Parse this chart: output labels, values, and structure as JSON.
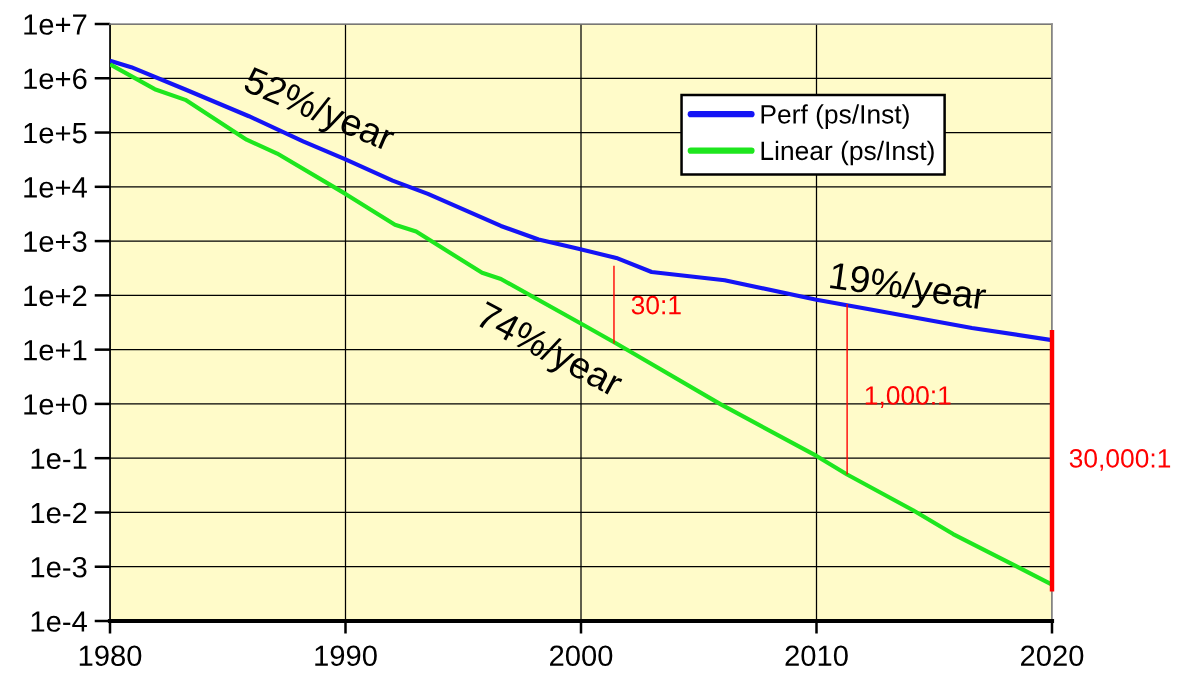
{
  "chart_data": {
    "type": "line",
    "log": "y",
    "xlim": [
      1980,
      2020
    ],
    "xticks": [
      1980,
      1990,
      2000,
      2010,
      2020
    ],
    "ylim": [
      0.0001,
      10000000
    ],
    "yticks": [
      {
        "value": 10000000,
        "label": "1e+7"
      },
      {
        "value": 1000000,
        "label": "1e+6"
      },
      {
        "value": 100000,
        "label": "1e+5"
      },
      {
        "value": 10000,
        "label": "1e+4"
      },
      {
        "value": 1000,
        "label": "1e+3"
      },
      {
        "value": 100,
        "label": "1e+2"
      },
      {
        "value": 10,
        "label": "1e+1"
      },
      {
        "value": 1,
        "label": "1e+0"
      },
      {
        "value": 0.1,
        "label": "1e-1"
      },
      {
        "value": 0.01,
        "label": "1e-2"
      },
      {
        "value": 0.001,
        "label": "1e-3"
      },
      {
        "value": 0.0001,
        "label": "1e-4"
      }
    ],
    "grid": true,
    "legend": "top right",
    "line_style": "solid",
    "series": [
      {
        "name": "Perf (ps/Inst)",
        "color": "#1414f5",
        "x": [
          1980,
          1980.9,
          1983.2,
          1985.9,
          1988.2,
          1990,
          1992,
          1993.5,
          1996.6,
          1998.2,
          1999.8,
          2001.5,
          2003,
          2006.1,
          2010,
          2012.3,
          2016.6,
          2020
        ],
        "values": [
          2100000,
          1600000,
          620000,
          200000,
          69000,
          32000,
          13000,
          7400,
          1900,
          1070,
          740,
          490,
          270,
          190,
          83,
          55,
          25,
          15
        ]
      },
      {
        "name": "Linear (ps/Inst)",
        "color": "#1ee61e",
        "x": [
          1980,
          1981.9,
          1983.2,
          1985.8,
          1987.1,
          1990,
          1992.1,
          1993,
          1995.8,
          1996.6,
          2000.2,
          2001.5,
          2005.9,
          2010,
          2011.3,
          2014.1,
          2015.8,
          2020
        ],
        "values": [
          1800000,
          630000,
          400000,
          74000,
          41000,
          7400,
          2000,
          1500,
          260,
          200,
          27,
          13,
          1.0,
          0.11,
          0.05,
          0.011,
          0.004,
          0.00047
        ]
      },
      {
        "color": "#ff0000",
        "x": [
          2001.4,
          2001.4
        ],
        "values": [
          350,
          13
        ]
      },
      {
        "color": "#ff0000",
        "x": [
          2011.3,
          2011.3
        ],
        "values": [
          69,
          0.05
        ]
      },
      {
        "color": "#ff0000",
        "x": [
          2020,
          2020
        ],
        "values": [
          23,
          0.00035
        ]
      }
    ],
    "annotations": [
      "52%/year",
      "74%/year",
      "19%/year",
      {
        "text": "30:1",
        "x": 2001.4,
        "y": 60
      },
      {
        "text": "1,000:1",
        "x": 2011.3,
        "y": 1.3
      },
      {
        "text": "30,000:1",
        "x": 2020,
        "y": 0.09
      }
    ]
  }
}
